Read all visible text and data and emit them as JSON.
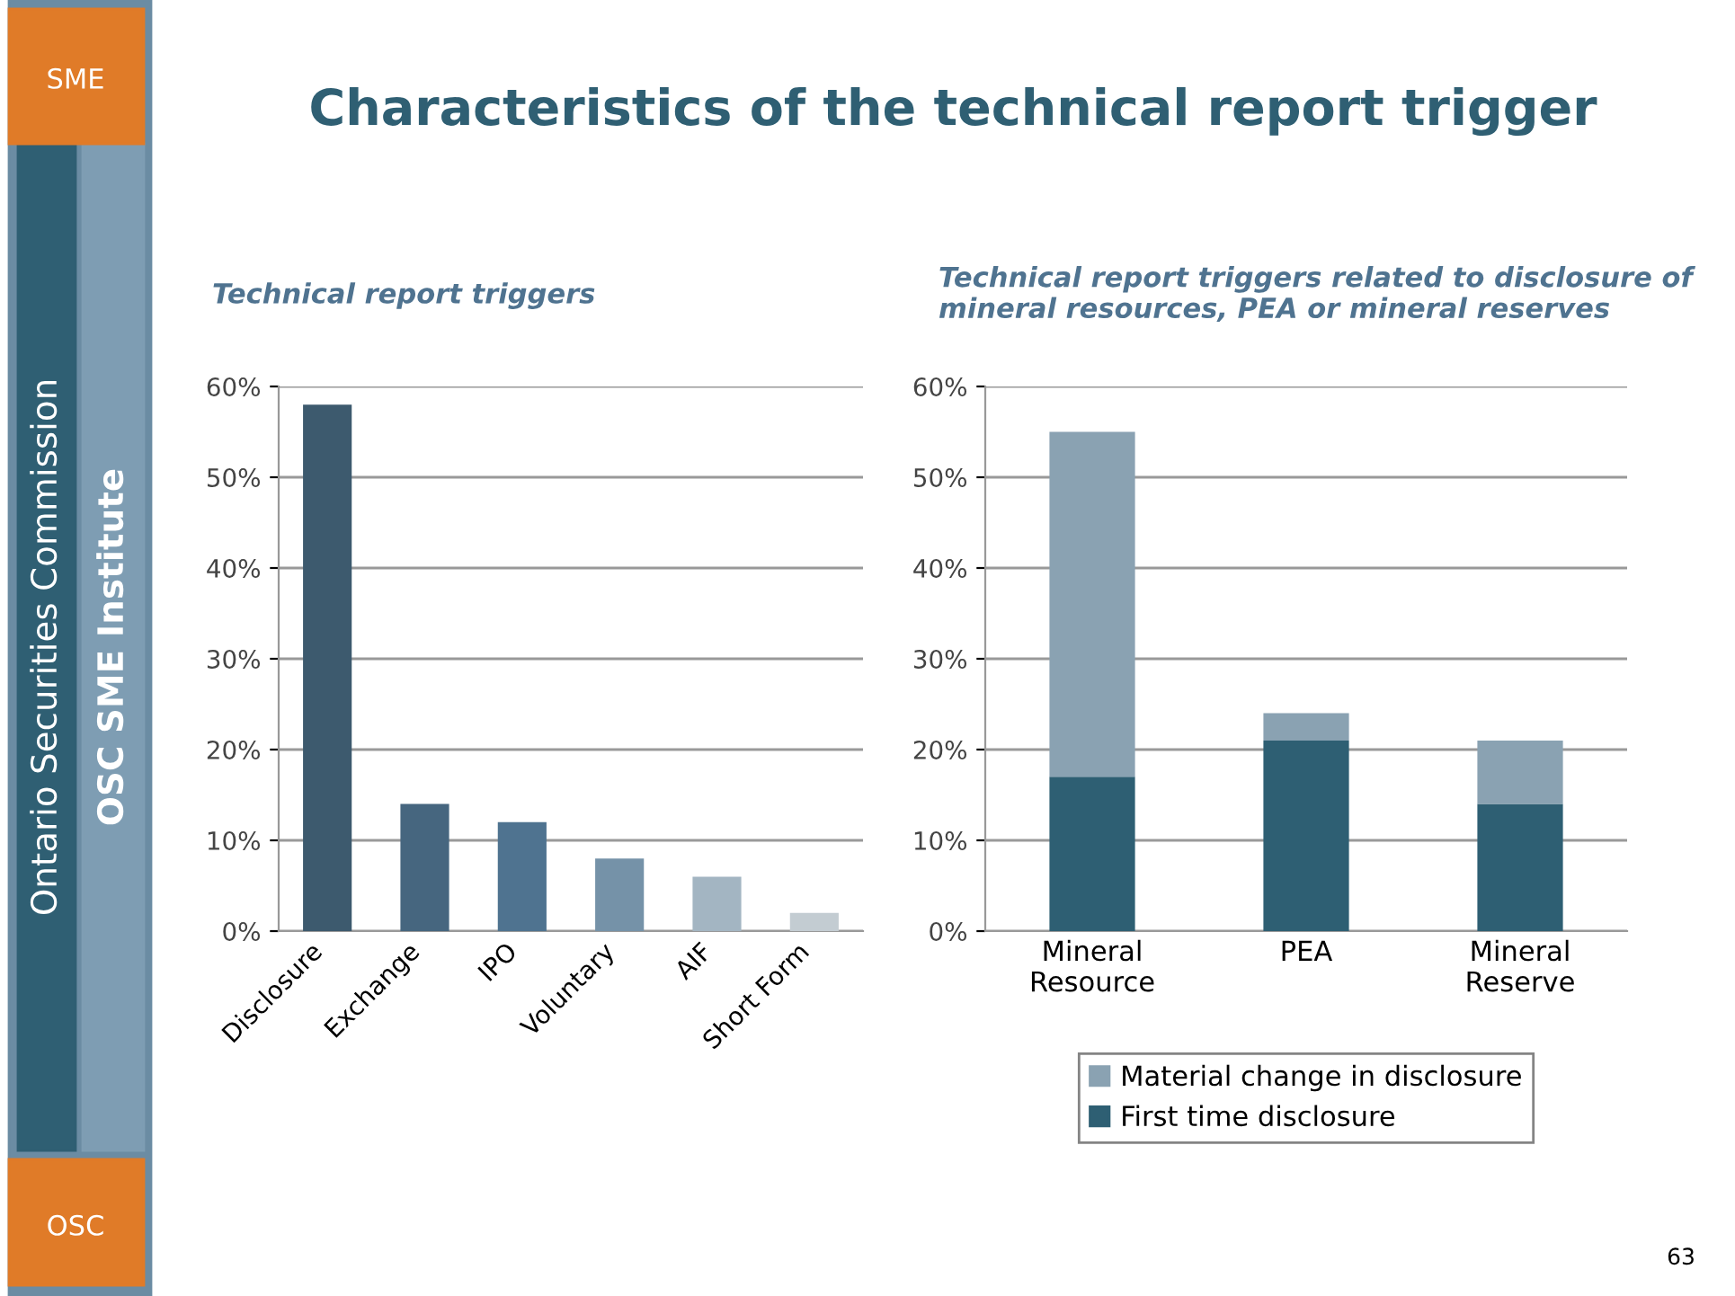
{
  "chart_data": [
    {
      "type": "bar",
      "title": "Technical report triggers",
      "categories": [
        "Disclosure",
        "Exchange",
        "IPO",
        "Voluntary",
        "AIF",
        "Short Form"
      ],
      "values": [
        58,
        14,
        12,
        8,
        6,
        2
      ],
      "colors": [
        "#3d5a6e",
        "#46667f",
        "#4f7390",
        "#7592a8",
        "#a3b5c2",
        "#c3ccd2"
      ],
      "ylim": [
        0,
        60
      ],
      "yticks": [
        {
          "value": 0,
          "label": "0%"
        },
        {
          "value": 10,
          "label": "10%"
        },
        {
          "value": 20,
          "label": "20%"
        },
        {
          "value": 30,
          "label": "30%"
        },
        {
          "value": 40,
          "label": "40%"
        },
        {
          "value": 50,
          "label": "50%"
        },
        {
          "value": 60,
          "label": "60%"
        }
      ],
      "grid": "y",
      "annotations": [
        "Characteristics of the technical report trigger",
        "Ontario Securities Commission",
        "OSC SME Institute",
        "SME",
        "OSC",
        "63"
      ]
    },
    {
      "type": "bar",
      "title": "Technical report triggers related to disclosure of mineral resources, PEA or mineral reserves",
      "categories": [
        "Mineral\nResource",
        "PEA",
        "Mineral\nReserve"
      ],
      "stacked": true,
      "series": [
        {
          "name": "First time disclosure",
          "color": "#2e5f73",
          "values": [
            17,
            21,
            14
          ]
        },
        {
          "name": "Material change in disclosure",
          "color": "#8aa2b2",
          "values": [
            38,
            3,
            7
          ]
        }
      ],
      "ylim": [
        0,
        60
      ],
      "yticks": [
        {
          "value": 0,
          "label": "0%"
        },
        {
          "value": 10,
          "label": "10%"
        },
        {
          "value": 20,
          "label": "20%"
        },
        {
          "value": 30,
          "label": "30%"
        },
        {
          "value": 40,
          "label": "40%"
        },
        {
          "value": 50,
          "label": "50%"
        },
        {
          "value": 60,
          "label": "60%"
        }
      ],
      "grid": "y",
      "legend": "bottom"
    }
  ]
}
